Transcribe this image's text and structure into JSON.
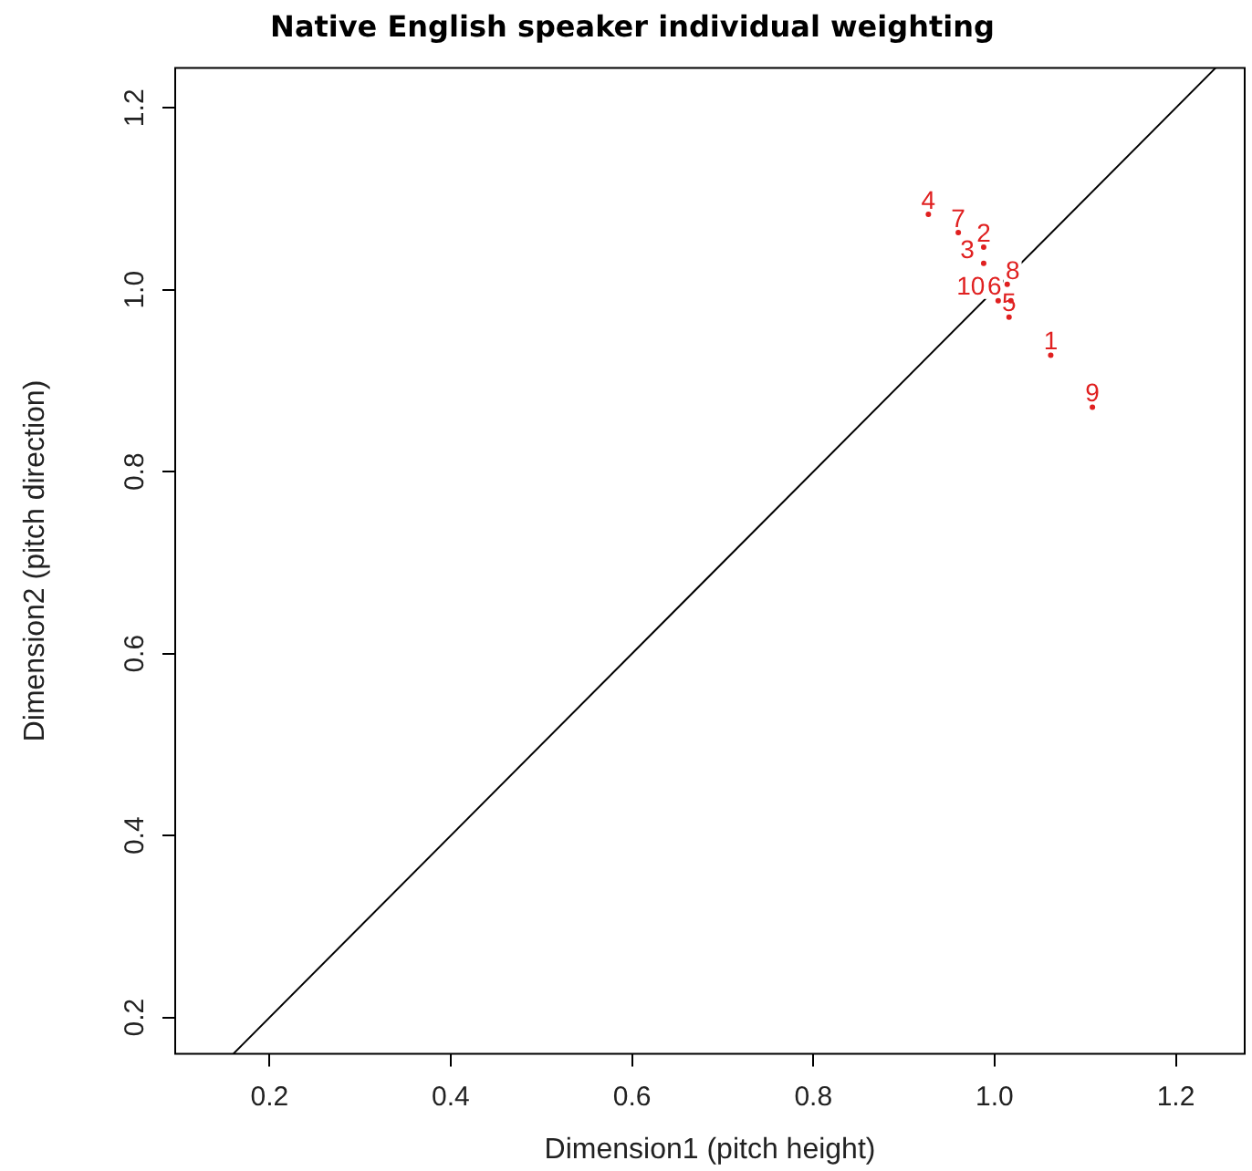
{
  "chart_data": {
    "type": "scatter",
    "title": "Native English speaker individual weighting",
    "xlabel": "Dimension1 (pitch height)",
    "ylabel": "Dimension2 (pitch direction)",
    "xlim": [
      0.096,
      1.276
    ],
    "ylim": [
      0.16,
      1.244
    ],
    "xticks": [
      0.2,
      0.4,
      0.6,
      0.8,
      {
        "value": 1,
        "label": "1.0"
      },
      1.2
    ],
    "yticks": [
      0.2,
      0.4,
      0.6,
      0.8,
      {
        "value": 1,
        "label": "1.0"
      },
      1.2
    ],
    "grid": false,
    "legend": false,
    "series": [
      {
        "color": "#e02020",
        "marker": "circle",
        "x": [
          1.062,
          0.988,
          0.988,
          0.927,
          1.016,
          1.018,
          0.96,
          1.014,
          1.108,
          1.004
        ],
        "values": [
          0.928,
          1.047,
          1.029,
          1.083,
          0.97,
          0.988,
          1.063,
          1.006,
          0.871,
          0.988
        ]
      },
      {
        "type": "line",
        "color": "#000000",
        "marker": "none",
        "x": [
          0.16,
          1.244
        ],
        "values": [
          0.16,
          1.244
        ]
      }
    ],
    "annotations": [
      {
        "text": "1",
        "x": 1.062,
        "y": 0.928
      },
      {
        "text": "2",
        "x": 0.988,
        "y": 1.047
      },
      {
        "text": "3",
        "x": 0.988,
        "y": 1.029
      },
      {
        "text": "4",
        "x": 0.927,
        "y": 1.083
      },
      {
        "text": "5",
        "x": 1.016,
        "y": 0.97
      },
      {
        "text": "6",
        "x": 1.018,
        "y": 0.988
      },
      {
        "text": "7",
        "x": 0.96,
        "y": 1.063
      },
      {
        "text": "8",
        "x": 1.014,
        "y": 1.006
      },
      {
        "text": "9",
        "x": 1.108,
        "y": 0.871
      },
      {
        "text": "10",
        "x": 1.004,
        "y": 0.988
      }
    ]
  }
}
